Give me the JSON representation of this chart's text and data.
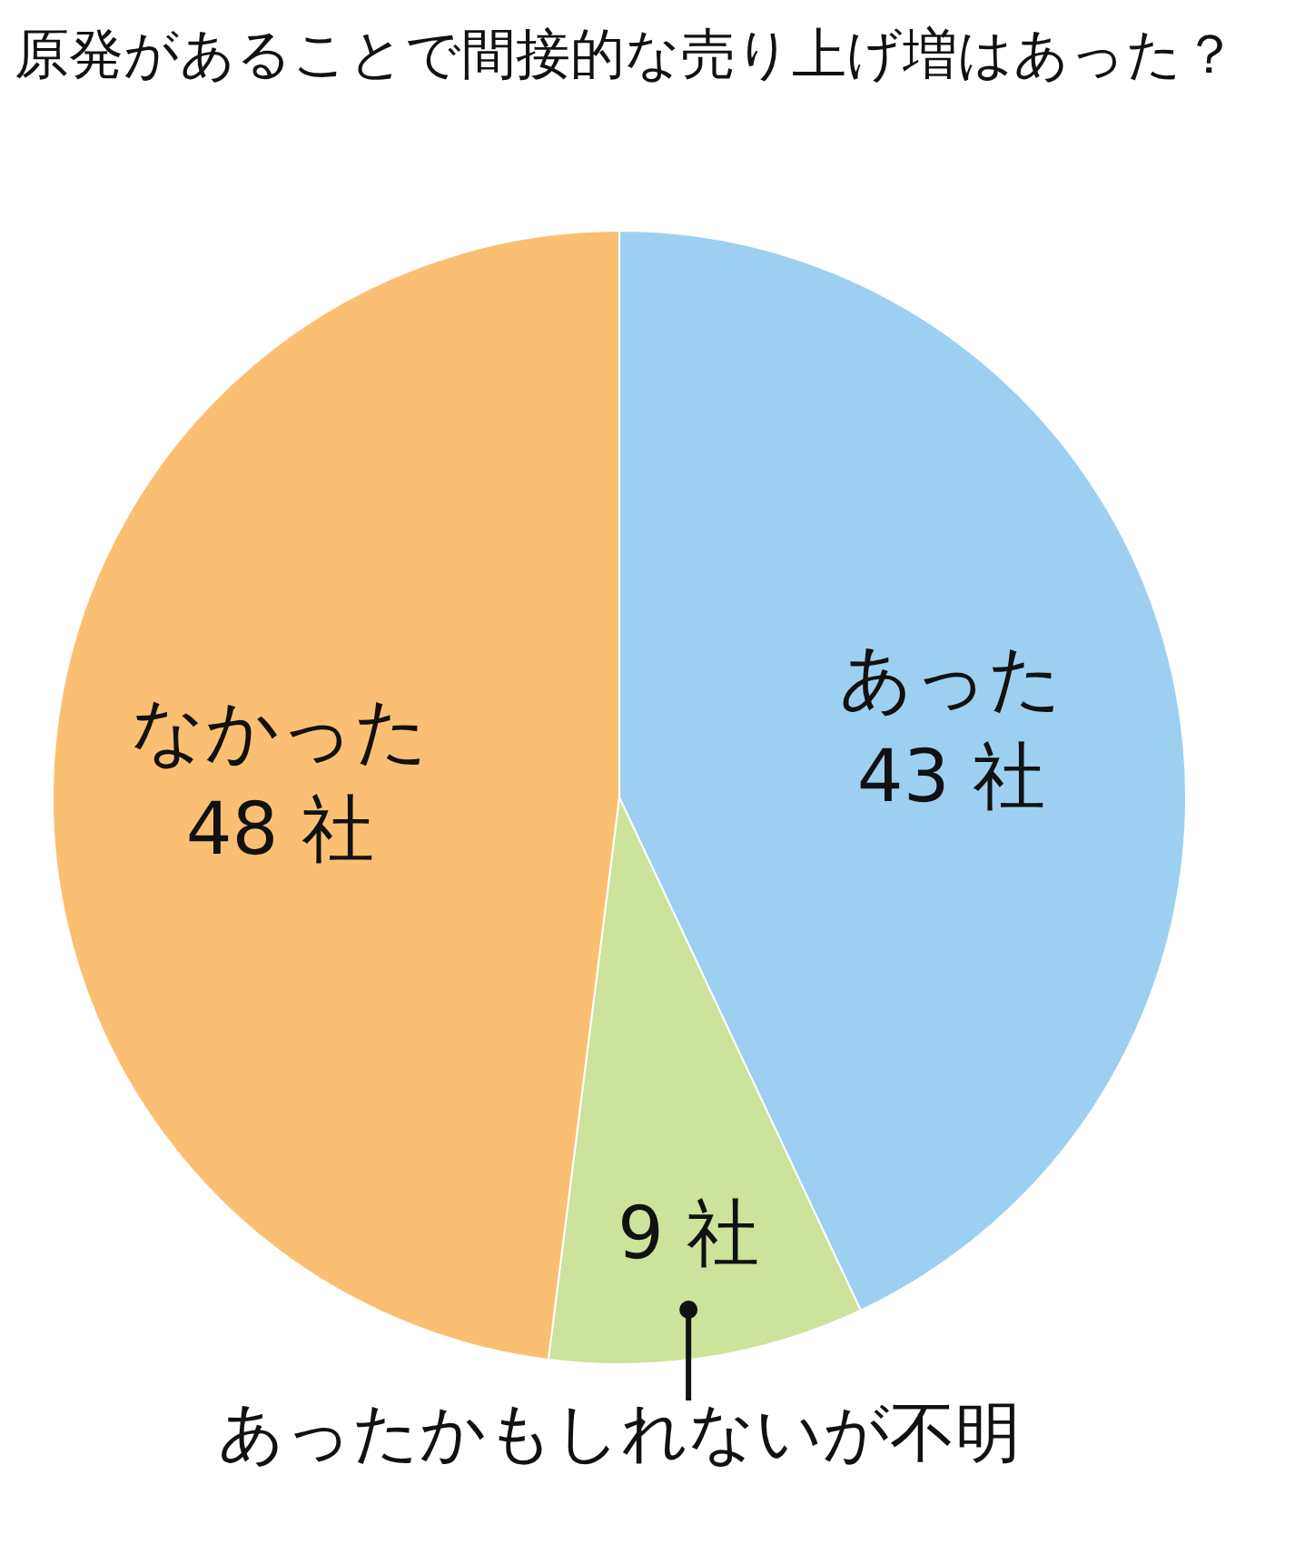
{
  "chart_data": {
    "type": "pie",
    "title": "原発があることで間接的な売り上げ増はあった？",
    "categories": [
      "あった",
      "あったかもしれないが不明",
      "なかった"
    ],
    "values": [
      43,
      9,
      48
    ],
    "value_labels": [
      "43 社",
      "9 社",
      "48 社"
    ],
    "colors": [
      "#9dd0f0",
      "#cde29a",
      "#fbbf73"
    ]
  }
}
